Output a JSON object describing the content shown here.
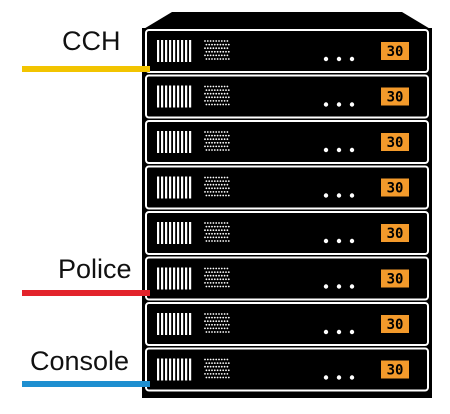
{
  "diagram": {
    "labels": [
      {
        "text": "CCH",
        "color": "#F2C400",
        "unit": 1
      },
      {
        "text": "Police",
        "color": "#E3232B",
        "unit": 6
      },
      {
        "text": "Console",
        "color": "#1E8FD0",
        "unit": 8
      }
    ],
    "units": [
      {
        "display": "30"
      },
      {
        "display": "30"
      },
      {
        "display": "30"
      },
      {
        "display": "30"
      },
      {
        "display": "30"
      },
      {
        "display": "30"
      },
      {
        "display": "30"
      },
      {
        "display": "30"
      }
    ],
    "colors": {
      "chassis": "#000000",
      "panel_border": "#ffffff",
      "display_bg": "#F39A2B",
      "display_text": "#000000"
    }
  }
}
